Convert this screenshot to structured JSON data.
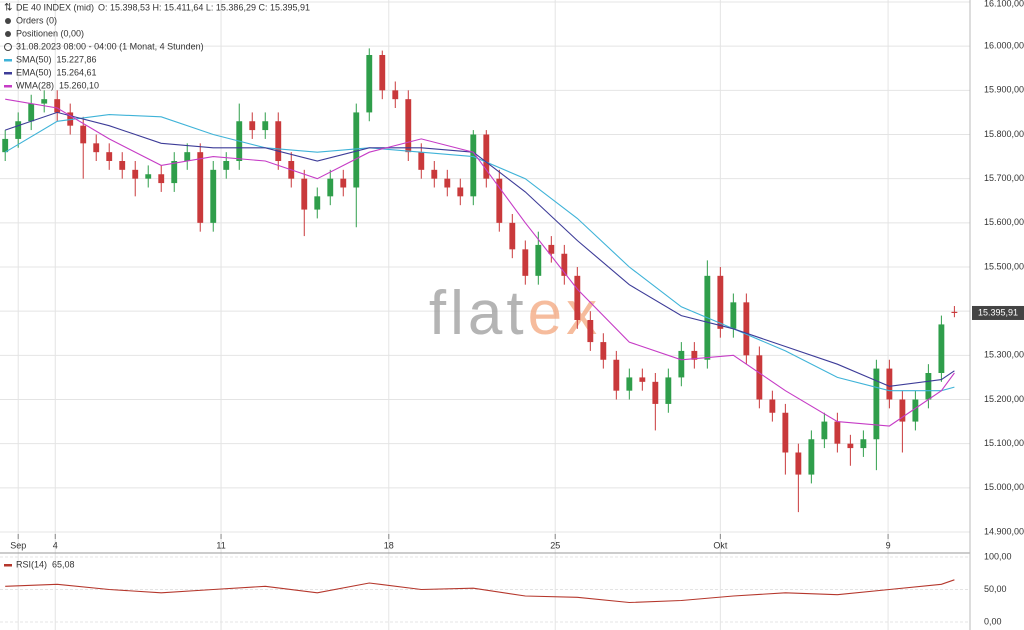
{
  "header": {
    "title": "DE 40 INDEX (mid)",
    "ohlc": "O: 15.398,53  H: 15.411,64  L: 15.386,29  C: 15.395,91",
    "orders": "Orders (0)",
    "positions": "Positionen (0,00)",
    "period": "31.08.2023 08:00 - 04:00  (1 Monat, 4 Stunden)"
  },
  "watermark": {
    "part1": "flat",
    "part2": "ex"
  },
  "chart_data": [
    {
      "type": "candlestick",
      "x": [
        0,
        1,
        2,
        3,
        4,
        5,
        6,
        7,
        8,
        9,
        10,
        11,
        12,
        13,
        14,
        15,
        16,
        17,
        18,
        19,
        20,
        21,
        22,
        23,
        24,
        25,
        26,
        27,
        28,
        29,
        30,
        31,
        32,
        33,
        34,
        35,
        36,
        37,
        38,
        39,
        40,
        41,
        42,
        43,
        44,
        45,
        46,
        47,
        48,
        49,
        50,
        51,
        52,
        53,
        54,
        55,
        56,
        57,
        58,
        59,
        60,
        61,
        62,
        63,
        64,
        65,
        66,
        67,
        68,
        69,
        70,
        71,
        72,
        73
      ],
      "open": [
        15760,
        15790,
        15830,
        15870,
        15880,
        15850,
        15820,
        15780,
        15760,
        15740,
        15720,
        15700,
        15710,
        15690,
        15740,
        15760,
        15600,
        15720,
        15740,
        15830,
        15810,
        15830,
        15740,
        15700,
        15630,
        15660,
        15700,
        15680,
        15850,
        15980,
        15900,
        15880,
        15760,
        15720,
        15700,
        15680,
        15660,
        15800,
        15700,
        15600,
        15540,
        15480,
        15550,
        15530,
        15480,
        15380,
        15330,
        15290,
        15220,
        15250,
        15240,
        15190,
        15250,
        15310,
        15290,
        15480,
        15360,
        15420,
        15300,
        15200,
        15170,
        15080,
        15030,
        15110,
        15150,
        15100,
        15090,
        15110,
        15270,
        15200,
        15150,
        15200,
        15260,
        15398.53
      ],
      "high": [
        15810,
        15850,
        15890,
        15900,
        15900,
        15870,
        15840,
        15800,
        15780,
        15760,
        15740,
        15730,
        15730,
        15760,
        15780,
        15780,
        15740,
        15760,
        15870,
        15850,
        15850,
        15850,
        15760,
        15720,
        15680,
        15720,
        15720,
        15870,
        15995,
        15990,
        15920,
        15900,
        15780,
        15740,
        15720,
        15700,
        15810,
        15810,
        15720,
        15620,
        15560,
        15580,
        15570,
        15550,
        15500,
        15400,
        15350,
        15310,
        15270,
        15270,
        15260,
        15270,
        15330,
        15330,
        15515,
        15500,
        15440,
        15440,
        15320,
        15220,
        15190,
        15100,
        15130,
        15170,
        15170,
        15120,
        15130,
        15290,
        15290,
        15220,
        15220,
        15280,
        15390,
        15411.64
      ],
      "low": [
        15740,
        15770,
        15810,
        15850,
        15830,
        15800,
        15700,
        15740,
        15720,
        15700,
        15660,
        15680,
        15670,
        15670,
        15720,
        15580,
        15580,
        15700,
        15720,
        15790,
        15790,
        15720,
        15680,
        15570,
        15610,
        15640,
        15660,
        15590,
        15830,
        15880,
        15860,
        15740,
        15700,
        15680,
        15660,
        15640,
        15640,
        15680,
        15580,
        15520,
        15460,
        15460,
        15510,
        15460,
        15360,
        15310,
        15270,
        15200,
        15200,
        15220,
        15130,
        15170,
        15230,
        15270,
        15270,
        15340,
        15340,
        15280,
        15180,
        15150,
        15030,
        14945,
        15010,
        15090,
        15080,
        15050,
        15070,
        15040,
        15180,
        15080,
        15130,
        15180,
        15240,
        15386.29
      ],
      "close": [
        15790,
        15830,
        15870,
        15880,
        15850,
        15820,
        15780,
        15760,
        15740,
        15720,
        15700,
        15710,
        15690,
        15740,
        15760,
        15600,
        15720,
        15740,
        15830,
        15810,
        15830,
        15740,
        15700,
        15630,
        15660,
        15700,
        15680,
        15850,
        15980,
        15900,
        15880,
        15760,
        15720,
        15700,
        15680,
        15660,
        15800,
        15700,
        15600,
        15540,
        15480,
        15550,
        15530,
        15480,
        15380,
        15330,
        15290,
        15220,
        15250,
        15240,
        15190,
        15250,
        15310,
        15290,
        15480,
        15360,
        15420,
        15300,
        15200,
        15170,
        15080,
        15030,
        15110,
        15150,
        15100,
        15090,
        15110,
        15270,
        15200,
        15150,
        15200,
        15260,
        15370,
        15395.91
      ],
      "up_color": "#2f9e4b",
      "down_color": "#c9393b",
      "series": [
        {
          "name": "SMA(50)",
          "legend_value": "15.227,86",
          "color": "#3fb3d8",
          "x": [
            0,
            4,
            8,
            12,
            16,
            20,
            24,
            28,
            32,
            36,
            40,
            44,
            48,
            52,
            56,
            60,
            64,
            68,
            72,
            73
          ],
          "values": [
            15760,
            15830,
            15845,
            15840,
            15800,
            15770,
            15760,
            15770,
            15760,
            15750,
            15700,
            15610,
            15500,
            15410,
            15360,
            15310,
            15250,
            15220,
            15220,
            15228
          ]
        },
        {
          "name": "EMA(50)",
          "legend_value": "15.264,61",
          "color": "#3d3c98",
          "x": [
            0,
            4,
            8,
            12,
            16,
            20,
            24,
            28,
            32,
            36,
            40,
            44,
            48,
            52,
            56,
            60,
            64,
            68,
            72,
            73
          ],
          "values": [
            15810,
            15850,
            15820,
            15780,
            15770,
            15770,
            15740,
            15770,
            15770,
            15760,
            15670,
            15560,
            15460,
            15390,
            15360,
            15320,
            15280,
            15230,
            15245,
            15265
          ]
        },
        {
          "name": "WMA(28)",
          "legend_value": "15.260,10",
          "color": "#c63cc6",
          "x": [
            0,
            4,
            8,
            12,
            16,
            20,
            24,
            28,
            32,
            36,
            40,
            44,
            48,
            52,
            56,
            60,
            64,
            68,
            72,
            73
          ],
          "values": [
            15880,
            15860,
            15790,
            15730,
            15750,
            15740,
            15700,
            15760,
            15790,
            15760,
            15600,
            15450,
            15330,
            15290,
            15300,
            15220,
            15150,
            15140,
            15220,
            15260
          ]
        }
      ],
      "last_price": {
        "value": 15395.91,
        "label": "15.395,91"
      },
      "xlim": [
        -0.4,
        74.2
      ],
      "xticks": [
        {
          "value": 1,
          "label": "Sep"
        },
        {
          "value": 3.85,
          "label": "4"
        },
        {
          "value": 16.6,
          "label": "11"
        },
        {
          "value": 29.5,
          "label": "18"
        },
        {
          "value": 42.3,
          "label": "25"
        },
        {
          "value": 55,
          "label": "Okt"
        },
        {
          "value": 67.9,
          "label": "9"
        }
      ],
      "ylim": [
        14900,
        16100
      ],
      "yticks": [
        {
          "value": 14900,
          "label": "14.900,00"
        },
        {
          "value": 15000,
          "label": "15.000,00"
        },
        {
          "value": 15100,
          "label": "15.100,00"
        },
        {
          "value": 15200,
          "label": "15.200,00"
        },
        {
          "value": 15300,
          "label": "15.300,00"
        },
        {
          "value": 15400,
          "label": "15.400,00"
        },
        {
          "value": 15500,
          "label": "15.500,00"
        },
        {
          "value": 15600,
          "label": "15.600,00"
        },
        {
          "value": 15700,
          "label": "15.700,00"
        },
        {
          "value": 15800,
          "label": "15.800,00"
        },
        {
          "value": 15900,
          "label": "15.900,00"
        },
        {
          "value": 16000,
          "label": "16.000,00"
        },
        {
          "value": 16100,
          "label": "16.100,00"
        }
      ],
      "grid": true
    },
    {
      "type": "line",
      "series": [
        {
          "name": "RSI(14)",
          "legend_value": "65,08",
          "color": "#b5372c",
          "x": [
            0,
            4,
            8,
            12,
            16,
            20,
            24,
            28,
            32,
            36,
            40,
            44,
            48,
            52,
            56,
            60,
            64,
            68,
            72,
            73
          ],
          "values": [
            55,
            58,
            50,
            45,
            50,
            55,
            45,
            60,
            50,
            52,
            40,
            38,
            30,
            33,
            40,
            45,
            42,
            50,
            58,
            65
          ]
        }
      ],
      "xlim": [
        -0.4,
        74.2
      ],
      "ylim": [
        0,
        100
      ],
      "yticks": [
        {
          "value": 0,
          "label": "0,00"
        },
        {
          "value": 50,
          "label": "50,00"
        },
        {
          "value": 100,
          "label": "100,00"
        }
      ],
      "grid": true
    }
  ]
}
